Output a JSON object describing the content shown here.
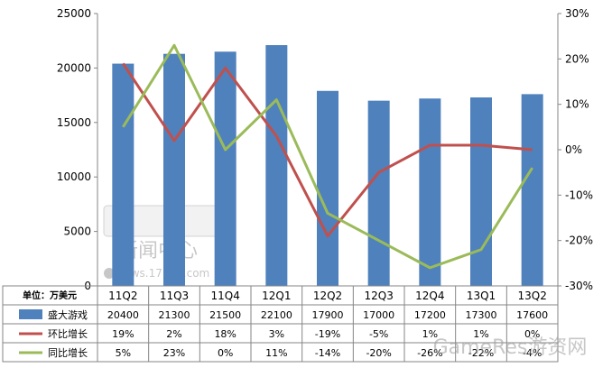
{
  "chart_data": {
    "type": "bar",
    "categories": [
      "11Q2",
      "11Q3",
      "11Q4",
      "12Q1",
      "12Q2",
      "12Q3",
      "12Q4",
      "13Q1",
      "13Q2"
    ],
    "unit_label": "单位：万美元",
    "y_left": {
      "min": 0,
      "max": 25000,
      "ticks": [
        "0",
        "5000",
        "10000",
        "15000",
        "20000",
        "25000"
      ]
    },
    "y_right": {
      "min": -30,
      "max": 30,
      "ticks": [
        "-30%",
        "-20%",
        "-10%",
        "0%",
        "10%",
        "20%",
        "30%"
      ]
    },
    "series": [
      {
        "name": "盛大游戏",
        "kind": "bar",
        "axis": "left",
        "color": "#4f81bd",
        "values": [
          20400,
          21300,
          21500,
          22100,
          17900,
          17000,
          17200,
          17300,
          17600
        ],
        "labels": [
          "20400",
          "21300",
          "21500",
          "22100",
          "17900",
          "17000",
          "17200",
          "17300",
          "17600"
        ]
      },
      {
        "name": "环比增长",
        "kind": "line",
        "axis": "right",
        "color": "#c0504d",
        "values": [
          19,
          2,
          18,
          3,
          -19,
          -5,
          1,
          1,
          0
        ],
        "labels": [
          "19%",
          "2%",
          "18%",
          "3%",
          "-19%",
          "-5%",
          "1%",
          "1%",
          "0%"
        ]
      },
      {
        "name": "同比增长",
        "kind": "line",
        "axis": "right",
        "color": "#9bbb59",
        "values": [
          5,
          23,
          0,
          11,
          -14,
          -20,
          -26,
          -22,
          -4
        ],
        "labels": [
          "5%",
          "23%",
          "0%",
          "11%",
          "-14%",
          "-20%",
          "-26%",
          "-22%",
          "-4%"
        ]
      }
    ],
    "grid": false,
    "legend": "table-below"
  },
  "watermark": {
    "logo_text": "新闻中心",
    "site": "news.17173.com",
    "corner": "GameRes游资网"
  }
}
